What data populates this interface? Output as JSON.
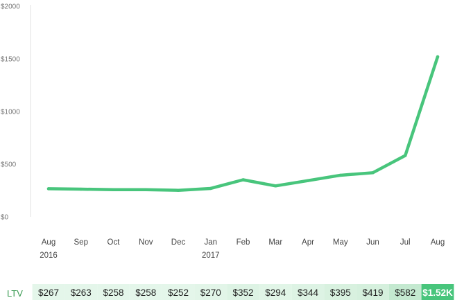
{
  "chart_data": {
    "type": "line",
    "categories": [
      "Aug",
      "Sep",
      "Oct",
      "Nov",
      "Dec",
      "Jan",
      "Feb",
      "Mar",
      "Apr",
      "May",
      "Jun",
      "Jul",
      "Aug"
    ],
    "category_years": [
      "2016",
      "",
      "",
      "",
      "",
      "2017",
      "",
      "",
      "",
      "",
      "",
      "",
      ""
    ],
    "series": [
      {
        "values": [
          267,
          263,
          258,
          258,
          252,
          270,
          352,
          294,
          344,
          395,
          419,
          582,
          1520
        ],
        "color": "#48c57c"
      }
    ],
    "ylim": [
      0,
      2000
    ],
    "yticks": [
      0,
      500,
      1000,
      1500,
      2000
    ],
    "ytick_labels": [
      "$0",
      "$500",
      "$1000",
      "$1500",
      "$2000"
    ],
    "grid": "vertical-axis-line",
    "summary_row": {
      "label": "LTV",
      "values": [
        "$267",
        "$263",
        "$258",
        "$258",
        "$252",
        "$270",
        "$352",
        "$294",
        "$344",
        "$395",
        "$419",
        "$582",
        "$1.52K"
      ],
      "cell_colors": [
        "#e4f6ea",
        "#e4f6ea",
        "#e4f6ea",
        "#e4f6ea",
        "#e4f6ea",
        "#e2f5e8",
        "#ddf3e4",
        "#e1f5e7",
        "#ddf3e4",
        "#d8f1df",
        "#d5f0dd",
        "#c4e9d0",
        "#48c57c"
      ]
    }
  }
}
